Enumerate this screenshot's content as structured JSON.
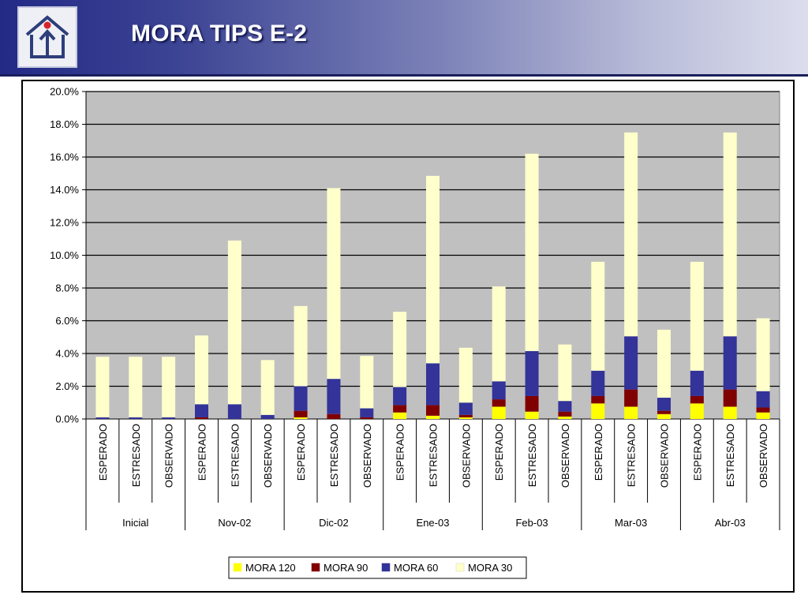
{
  "header": {
    "title": "MORA TIPS E-2",
    "logo_icon": "house-arrow-icon",
    "gradient_colors": [
      "#232a86",
      "#dcdded"
    ]
  },
  "chart_data": {
    "type": "bar",
    "stacked": true,
    "title": "",
    "xlabel": "",
    "ylabel": "",
    "ylim": [
      0,
      0.2
    ],
    "yticks": [
      "0.0%",
      "2.0%",
      "4.0%",
      "6.0%",
      "8.0%",
      "10.0%",
      "12.0%",
      "14.0%",
      "16.0%",
      "18.0%",
      "20.0%"
    ],
    "grid": true,
    "legend_position": "bottom",
    "plot_background": "#c0c0c0",
    "groups": [
      "Inicial",
      "Nov-02",
      "Dic-02",
      "Ene-03",
      "Feb-03",
      "Mar-03",
      "Abr-03"
    ],
    "subcategories": [
      "ESPERADO",
      "ESTRESADO",
      "OBSERVADO"
    ],
    "series": [
      {
        "name": "MORA 120",
        "color": "#ffff00",
        "values": [
          0,
          0,
          0,
          0,
          0,
          0,
          0.001,
          0,
          0,
          0.004,
          0.002,
          0.001,
          0.0075,
          0.0045,
          0.0015,
          0.0095,
          0.0075,
          0.003,
          0.0095,
          0.0075,
          0.004
        ]
      },
      {
        "name": "MORA 90",
        "color": "#800000",
        "values": [
          0,
          0,
          0,
          0.001,
          0,
          0,
          0.004,
          0.003,
          0.001,
          0.0045,
          0.0065,
          0.0015,
          0.0045,
          0.0095,
          0.003,
          0.0045,
          0.0105,
          0.002,
          0.0045,
          0.0105,
          0.003
        ]
      },
      {
        "name": "MORA 60",
        "color": "#333399",
        "values": [
          0.001,
          0.001,
          0.001,
          0.008,
          0.009,
          0.0025,
          0.015,
          0.0215,
          0.0055,
          0.011,
          0.0255,
          0.0075,
          0.011,
          0.0275,
          0.0065,
          0.0155,
          0.0325,
          0.008,
          0.0155,
          0.0325,
          0.01
        ]
      },
      {
        "name": "MORA 30",
        "color": "#ffffcc",
        "values": [
          0.037,
          0.037,
          0.037,
          0.042,
          0.1,
          0.0335,
          0.049,
          0.1165,
          0.032,
          0.046,
          0.1145,
          0.0335,
          0.058,
          0.1205,
          0.0345,
          0.0665,
          0.1245,
          0.0415,
          0.0665,
          0.1245,
          0.0445
        ]
      }
    ]
  }
}
